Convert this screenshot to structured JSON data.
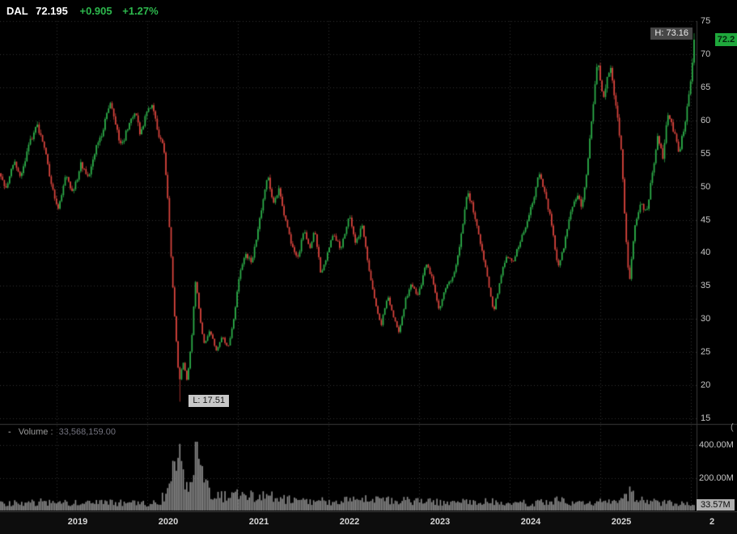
{
  "header": {
    "symbol": "DAL",
    "last_price": "72.195",
    "change": "+0.905",
    "change_pct": "+1.27%"
  },
  "chart_data": {
    "type": "candlestick",
    "symbol": "DAL",
    "title": "DAL weekly candlestick chart with volume",
    "last_close": 72.195,
    "last_price_badge": "72.2",
    "session_high_label": "H: 73.16",
    "session_low_label": "L: 17.51",
    "high_point": {
      "t": 2026.04,
      "price": 73.16
    },
    "low_point": {
      "t": 2020.36,
      "price": 17.51
    },
    "y_axis": {
      "min": 15,
      "max": 75,
      "ticks": [
        75,
        70,
        65,
        60,
        55,
        50,
        45,
        40,
        35,
        30,
        25,
        20,
        15
      ]
    },
    "x_axis": {
      "start": 2018.375,
      "end": 2026.045,
      "year_labels": [
        {
          "year": 2019,
          "label": "2019"
        },
        {
          "year": 2020,
          "label": "2020"
        },
        {
          "year": 2021,
          "label": "2021"
        },
        {
          "year": 2022,
          "label": "2022"
        },
        {
          "year": 2023,
          "label": "2023"
        },
        {
          "year": 2024,
          "label": "2024"
        },
        {
          "year": 2025,
          "label": "2025"
        },
        {
          "year": 2026,
          "label": "2"
        }
      ]
    },
    "price_path": [
      [
        2018.375,
        52.0
      ],
      [
        2018.46,
        49.5
      ],
      [
        2018.54,
        54.0
      ],
      [
        2018.61,
        51.5
      ],
      [
        2018.7,
        56.0
      ],
      [
        2018.79,
        59.5
      ],
      [
        2018.87,
        56.5
      ],
      [
        2018.95,
        50.0
      ],
      [
        2019.03,
        46.5
      ],
      [
        2019.11,
        51.5
      ],
      [
        2019.19,
        49.0
      ],
      [
        2019.28,
        53.5
      ],
      [
        2019.36,
        51.0
      ],
      [
        2019.44,
        55.5
      ],
      [
        2019.52,
        58.5
      ],
      [
        2019.6,
        63.0
      ],
      [
        2019.66,
        59.5
      ],
      [
        2019.72,
        56.0
      ],
      [
        2019.8,
        59.0
      ],
      [
        2019.87,
        61.5
      ],
      [
        2019.93,
        58.0
      ],
      [
        2020.0,
        61.0
      ],
      [
        2020.07,
        62.0
      ],
      [
        2020.13,
        58.0
      ],
      [
        2020.19,
        56.5
      ],
      [
        2020.24,
        47.0
      ],
      [
        2020.3,
        33.0
      ],
      [
        2020.36,
        20.5
      ],
      [
        2020.41,
        23.5
      ],
      [
        2020.45,
        20.5
      ],
      [
        2020.5,
        27.0
      ],
      [
        2020.545,
        36.5
      ],
      [
        2020.59,
        30.0
      ],
      [
        2020.64,
        26.0
      ],
      [
        2020.7,
        28.5
      ],
      [
        2020.77,
        25.0
      ],
      [
        2020.84,
        27.5
      ],
      [
        2020.9,
        25.5
      ],
      [
        2020.96,
        29.5
      ],
      [
        2021.02,
        36.0
      ],
      [
        2021.09,
        40.0
      ],
      [
        2021.16,
        38.5
      ],
      [
        2021.24,
        44.0
      ],
      [
        2021.31,
        49.5
      ],
      [
        2021.34,
        51.5
      ],
      [
        2021.4,
        47.0
      ],
      [
        2021.46,
        49.5
      ],
      [
        2021.53,
        45.0
      ],
      [
        2021.6,
        41.5
      ],
      [
        2021.67,
        39.0
      ],
      [
        2021.74,
        43.5
      ],
      [
        2021.8,
        40.5
      ],
      [
        2021.86,
        43.5
      ],
      [
        2021.93,
        36.5
      ],
      [
        2022.0,
        40.0
      ],
      [
        2022.07,
        43.0
      ],
      [
        2022.14,
        40.5
      ],
      [
        2022.24,
        45.5
      ],
      [
        2022.31,
        41.5
      ],
      [
        2022.38,
        44.0
      ],
      [
        2022.46,
        37.5
      ],
      [
        2022.53,
        32.0
      ],
      [
        2022.59,
        29.0
      ],
      [
        2022.66,
        33.5
      ],
      [
        2022.72,
        30.5
      ],
      [
        2022.79,
        27.8
      ],
      [
        2022.86,
        33.0
      ],
      [
        2022.92,
        35.0
      ],
      [
        2023.0,
        33.5
      ],
      [
        2023.09,
        38.5
      ],
      [
        2023.16,
        36.0
      ],
      [
        2023.23,
        31.5
      ],
      [
        2023.31,
        35.0
      ],
      [
        2023.39,
        36.5
      ],
      [
        2023.46,
        41.0
      ],
      [
        2023.54,
        49.5
      ],
      [
        2023.62,
        46.0
      ],
      [
        2023.7,
        40.5
      ],
      [
        2023.77,
        36.0
      ],
      [
        2023.83,
        31.0
      ],
      [
        2023.9,
        35.5
      ],
      [
        2023.97,
        39.5
      ],
      [
        2024.04,
        38.5
      ],
      [
        2024.12,
        41.5
      ],
      [
        2024.2,
        44.5
      ],
      [
        2024.27,
        48.0
      ],
      [
        2024.33,
        52.0
      ],
      [
        2024.4,
        49.0
      ],
      [
        2024.47,
        44.5
      ],
      [
        2024.54,
        37.8
      ],
      [
        2024.6,
        40.5
      ],
      [
        2024.68,
        46.0
      ],
      [
        2024.75,
        48.5
      ],
      [
        2024.81,
        47.0
      ],
      [
        2024.88,
        54.5
      ],
      [
        2024.93,
        62.5
      ],
      [
        2024.98,
        69.5
      ],
      [
        2025.04,
        63.0
      ],
      [
        2025.12,
        68.5
      ],
      [
        2025.18,
        62.5
      ],
      [
        2025.24,
        56.0
      ],
      [
        2025.29,
        43.0
      ],
      [
        2025.33,
        35.2
      ],
      [
        2025.38,
        43.0
      ],
      [
        2025.45,
        47.5
      ],
      [
        2025.52,
        46.0
      ],
      [
        2025.58,
        51.5
      ],
      [
        2025.64,
        57.5
      ],
      [
        2025.7,
        54.5
      ],
      [
        2025.76,
        61.5
      ],
      [
        2025.82,
        58.5
      ],
      [
        2025.88,
        55.0
      ],
      [
        2025.94,
        59.5
      ],
      [
        2026.0,
        64.5
      ],
      [
        2026.045,
        72.195
      ]
    ],
    "volume_pane": {
      "collapse_glyph": "-",
      "label": "Volume :",
      "value_text": "33,568,159.00",
      "clipped_glyph": "(",
      "last_volume_badge": "33.57M",
      "last_volume_m": 33.57,
      "axis_ticks": [
        {
          "label": "400.00M",
          "value_m": 400
        },
        {
          "label": "200.00M",
          "value_m": 200
        }
      ],
      "volume_path_m": [
        [
          2018.375,
          45
        ],
        [
          2018.8,
          50
        ],
        [
          2019.0,
          55
        ],
        [
          2019.3,
          45
        ],
        [
          2019.6,
          48
        ],
        [
          2020.0,
          42
        ],
        [
          2020.15,
          55
        ],
        [
          2020.22,
          110
        ],
        [
          2020.28,
          200
        ],
        [
          2020.33,
          280
        ],
        [
          2020.375,
          310
        ],
        [
          2020.42,
          230
        ],
        [
          2020.47,
          185
        ],
        [
          2020.51,
          250
        ],
        [
          2020.545,
          400
        ],
        [
          2020.58,
          295
        ],
        [
          2020.62,
          185
        ],
        [
          2020.7,
          120
        ],
        [
          2020.8,
          95
        ],
        [
          2020.9,
          85
        ],
        [
          2021.0,
          110
        ],
        [
          2021.1,
          95
        ],
        [
          2021.34,
          88
        ],
        [
          2021.5,
          70
        ],
        [
          2021.75,
          58
        ],
        [
          2022.0,
          56
        ],
        [
          2022.24,
          62
        ],
        [
          2022.5,
          66
        ],
        [
          2022.8,
          60
        ],
        [
          2023.0,
          55
        ],
        [
          2023.3,
          50
        ],
        [
          2023.54,
          56
        ],
        [
          2023.83,
          54
        ],
        [
          2024.0,
          46
        ],
        [
          2024.33,
          46
        ],
        [
          2024.54,
          62
        ],
        [
          2024.8,
          42
        ],
        [
          2024.98,
          56
        ],
        [
          2025.12,
          46
        ],
        [
          2025.29,
          85
        ],
        [
          2025.33,
          105
        ],
        [
          2025.45,
          62
        ],
        [
          2025.7,
          46
        ],
        [
          2025.9,
          42
        ],
        [
          2026.0,
          48
        ],
        [
          2026.045,
          34
        ]
      ]
    },
    "colors": {
      "up": "#2eb24b",
      "down": "#dd453e",
      "volume_bar": "#8f8f8f",
      "grid": "#323232",
      "border": "#3a3a3a",
      "badge_green": "#1fa83c"
    }
  }
}
